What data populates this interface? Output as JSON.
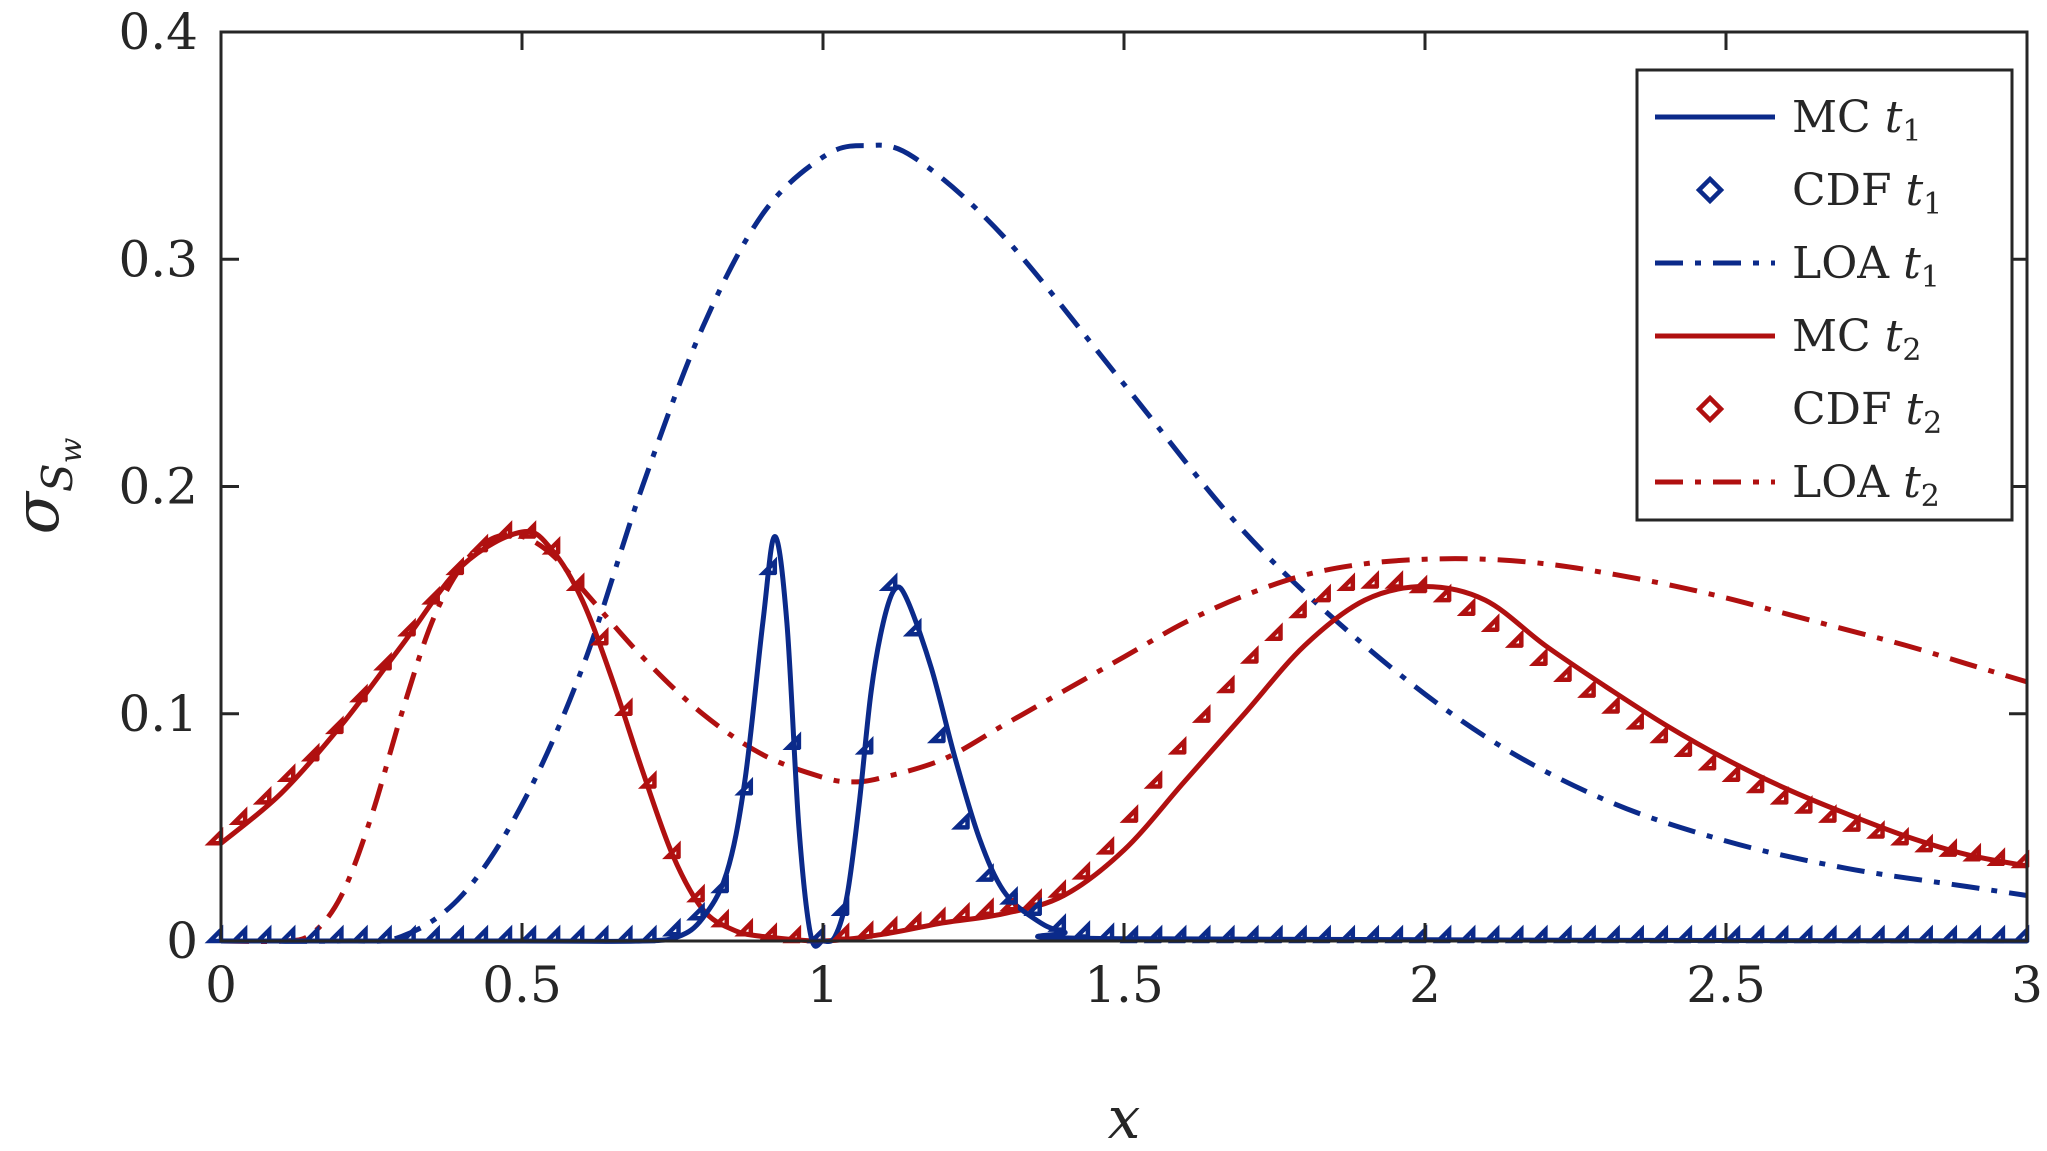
{
  "chart_data": {
    "type": "line",
    "xlabel": "x",
    "ylabel": {
      "base": "σ",
      "sub": "S",
      "subsub": "w"
    },
    "xlim": [
      0,
      3
    ],
    "ylim": [
      0,
      0.4
    ],
    "xticks": [
      "0",
      "0.5",
      "1",
      "1.5",
      "2",
      "2.5",
      "3"
    ],
    "yticks": [
      "0",
      "0.1",
      "0.2",
      "0.3",
      "0.4"
    ],
    "grid": false,
    "legend_position": "top-right",
    "colors": {
      "t1": "#0b2a8a",
      "t2": "#b01010",
      "axis": "#262626"
    },
    "series": [
      {
        "name": "MC",
        "time": "t",
        "time_sub": "1",
        "style": "solid",
        "color_key": "t1",
        "x": [
          0,
          0.5,
          0.7,
          0.76,
          0.8,
          0.84,
          0.87,
          0.9,
          0.92,
          0.94,
          0.96,
          0.98,
          1.0,
          1.02,
          1.04,
          1.06,
          1.08,
          1.1,
          1.12,
          1.14,
          1.18,
          1.22,
          1.26,
          1.3,
          1.35,
          1.4,
          1.5,
          3
        ],
        "y": [
          0,
          0,
          0,
          0.002,
          0.01,
          0.03,
          0.07,
          0.14,
          0.178,
          0.14,
          0.05,
          0.002,
          0,
          0.002,
          0.02,
          0.06,
          0.11,
          0.14,
          0.155,
          0.15,
          0.12,
          0.08,
          0.045,
          0.022,
          0.01,
          0.004,
          0.001,
          0
        ]
      },
      {
        "name": "CDF",
        "time": "t",
        "time_sub": "1",
        "style": "markers",
        "color_key": "t1",
        "x": [
          0,
          0.04,
          0.08,
          0.12,
          0.16,
          0.2,
          0.24,
          0.28,
          0.32,
          0.36,
          0.4,
          0.44,
          0.48,
          0.52,
          0.56,
          0.6,
          0.64,
          0.68,
          0.72,
          0.76,
          0.8,
          0.84,
          0.88,
          0.92,
          0.96,
          1.0,
          1.04,
          1.08,
          1.12,
          1.16,
          1.2,
          1.24,
          1.28,
          1.32,
          1.36,
          1.4,
          1.44,
          1.48,
          1.52,
          1.56,
          1.6,
          1.64,
          1.68,
          1.72,
          1.76,
          1.8,
          1.84,
          1.88,
          1.92,
          1.96,
          2.0,
          2.04,
          2.08,
          2.12,
          2.16,
          2.2,
          2.24,
          2.28,
          2.32,
          2.36,
          2.4,
          2.44,
          2.48,
          2.52,
          2.56,
          2.6,
          2.64,
          2.68,
          2.72,
          2.76,
          2.8,
          2.84,
          2.88,
          2.92,
          2.96,
          3.0
        ],
        "y": [
          0,
          0,
          0,
          0,
          0,
          0,
          0,
          0,
          0,
          0,
          0,
          0,
          0,
          0,
          0,
          0,
          0,
          0,
          0,
          0.003,
          0.01,
          0.022,
          0.065,
          0.162,
          0.085,
          0,
          0.012,
          0.083,
          0.155,
          0.135,
          0.088,
          0.05,
          0.027,
          0.017,
          0.012,
          0.005,
          0.002,
          0.001,
          0,
          0,
          0,
          0,
          0,
          0,
          0,
          0,
          0,
          0,
          0,
          0,
          0,
          0,
          0,
          0,
          0,
          0,
          0,
          0,
          0,
          0,
          0,
          0,
          0,
          0,
          0,
          0,
          0,
          0,
          0,
          0,
          0,
          0,
          0,
          0,
          0,
          0
        ]
      },
      {
        "name": "LOA",
        "time": "t",
        "time_sub": "1",
        "style": "dashdot",
        "color_key": "t1",
        "x": [
          0,
          0.2,
          0.3,
          0.4,
          0.5,
          0.6,
          0.7,
          0.8,
          0.9,
          1.0,
          1.07,
          1.15,
          1.3,
          1.5,
          1.7,
          1.9,
          2.1,
          2.3,
          2.5,
          2.7,
          2.9,
          3.0
        ],
        "y": [
          0,
          0,
          0.002,
          0.02,
          0.06,
          0.12,
          0.2,
          0.27,
          0.32,
          0.345,
          0.35,
          0.345,
          0.31,
          0.245,
          0.18,
          0.13,
          0.09,
          0.062,
          0.044,
          0.032,
          0.024,
          0.02
        ]
      },
      {
        "name": "MC",
        "time": "t",
        "time_sub": "2",
        "style": "solid",
        "color_key": "t2",
        "x": [
          0,
          0.1,
          0.2,
          0.3,
          0.4,
          0.5,
          0.55,
          0.6,
          0.65,
          0.7,
          0.75,
          0.8,
          0.85,
          0.9,
          1.0,
          1.1,
          1.2,
          1.3,
          1.4,
          1.5,
          1.6,
          1.7,
          1.8,
          1.9,
          2.0,
          2.1,
          2.2,
          2.3,
          2.4,
          2.5,
          2.6,
          2.7,
          2.8,
          2.9,
          3.0
        ],
        "y": [
          0.043,
          0.065,
          0.095,
          0.13,
          0.165,
          0.18,
          0.172,
          0.15,
          0.115,
          0.075,
          0.038,
          0.014,
          0.005,
          0.002,
          0,
          0.003,
          0.008,
          0.012,
          0.02,
          0.04,
          0.07,
          0.1,
          0.13,
          0.15,
          0.156,
          0.15,
          0.13,
          0.112,
          0.095,
          0.08,
          0.067,
          0.056,
          0.046,
          0.038,
          0.033
        ]
      },
      {
        "name": "CDF",
        "time": "t",
        "time_sub": "2",
        "style": "markers",
        "color_key": "t2",
        "x": [
          0,
          0.04,
          0.08,
          0.12,
          0.16,
          0.2,
          0.24,
          0.28,
          0.32,
          0.36,
          0.4,
          0.44,
          0.48,
          0.52,
          0.56,
          0.6,
          0.64,
          0.68,
          0.72,
          0.76,
          0.8,
          0.84,
          0.88,
          0.92,
          0.96,
          1.0,
          1.04,
          1.08,
          1.12,
          1.16,
          1.2,
          1.24,
          1.28,
          1.32,
          1.36,
          1.4,
          1.44,
          1.48,
          1.52,
          1.56,
          1.6,
          1.64,
          1.68,
          1.72,
          1.76,
          1.8,
          1.84,
          1.88,
          1.92,
          1.96,
          2.0,
          2.04,
          2.08,
          2.12,
          2.16,
          2.2,
          2.24,
          2.28,
          2.32,
          2.36,
          2.4,
          2.44,
          2.48,
          2.52,
          2.56,
          2.6,
          2.64,
          2.68,
          2.72,
          2.76,
          2.8,
          2.84,
          2.88,
          2.92,
          2.96,
          3.0
        ],
        "y": [
          0.043,
          0.052,
          0.061,
          0.071,
          0.08,
          0.092,
          0.106,
          0.12,
          0.135,
          0.149,
          0.162,
          0.172,
          0.178,
          0.178,
          0.171,
          0.155,
          0.131,
          0.1,
          0.068,
          0.037,
          0.018,
          0.007,
          0.003,
          0.001,
          0,
          0,
          0.001,
          0.002,
          0.004,
          0.006,
          0.008,
          0.01,
          0.012,
          0.014,
          0.016,
          0.02,
          0.028,
          0.039,
          0.053,
          0.068,
          0.083,
          0.097,
          0.11,
          0.123,
          0.133,
          0.143,
          0.15,
          0.155,
          0.156,
          0.156,
          0.154,
          0.15,
          0.144,
          0.137,
          0.13,
          0.122,
          0.115,
          0.108,
          0.101,
          0.094,
          0.088,
          0.082,
          0.076,
          0.071,
          0.066,
          0.061,
          0.057,
          0.053,
          0.049,
          0.046,
          0.043,
          0.04,
          0.038,
          0.036,
          0.034,
          0.033
        ]
      },
      {
        "name": "LOA",
        "time": "t",
        "time_sub": "2",
        "style": "dashdot",
        "color_key": "t2",
        "x": [
          0,
          0.1,
          0.15,
          0.2,
          0.25,
          0.3,
          0.35,
          0.4,
          0.45,
          0.5,
          0.55,
          0.6,
          0.7,
          0.8,
          0.9,
          1.0,
          1.05,
          1.1,
          1.2,
          1.3,
          1.4,
          1.5,
          1.6,
          1.7,
          1.8,
          1.9,
          2.0,
          2.1,
          2.2,
          2.3,
          2.4,
          2.5,
          2.6,
          2.7,
          2.8,
          2.9,
          3.0
        ],
        "y": [
          0,
          0,
          0.003,
          0.02,
          0.055,
          0.1,
          0.14,
          0.165,
          0.177,
          0.178,
          0.17,
          0.155,
          0.125,
          0.1,
          0.082,
          0.072,
          0.07,
          0.072,
          0.08,
          0.095,
          0.11,
          0.125,
          0.14,
          0.152,
          0.161,
          0.166,
          0.168,
          0.168,
          0.166,
          0.162,
          0.157,
          0.151,
          0.144,
          0.137,
          0.13,
          0.122,
          0.114
        ]
      }
    ]
  }
}
